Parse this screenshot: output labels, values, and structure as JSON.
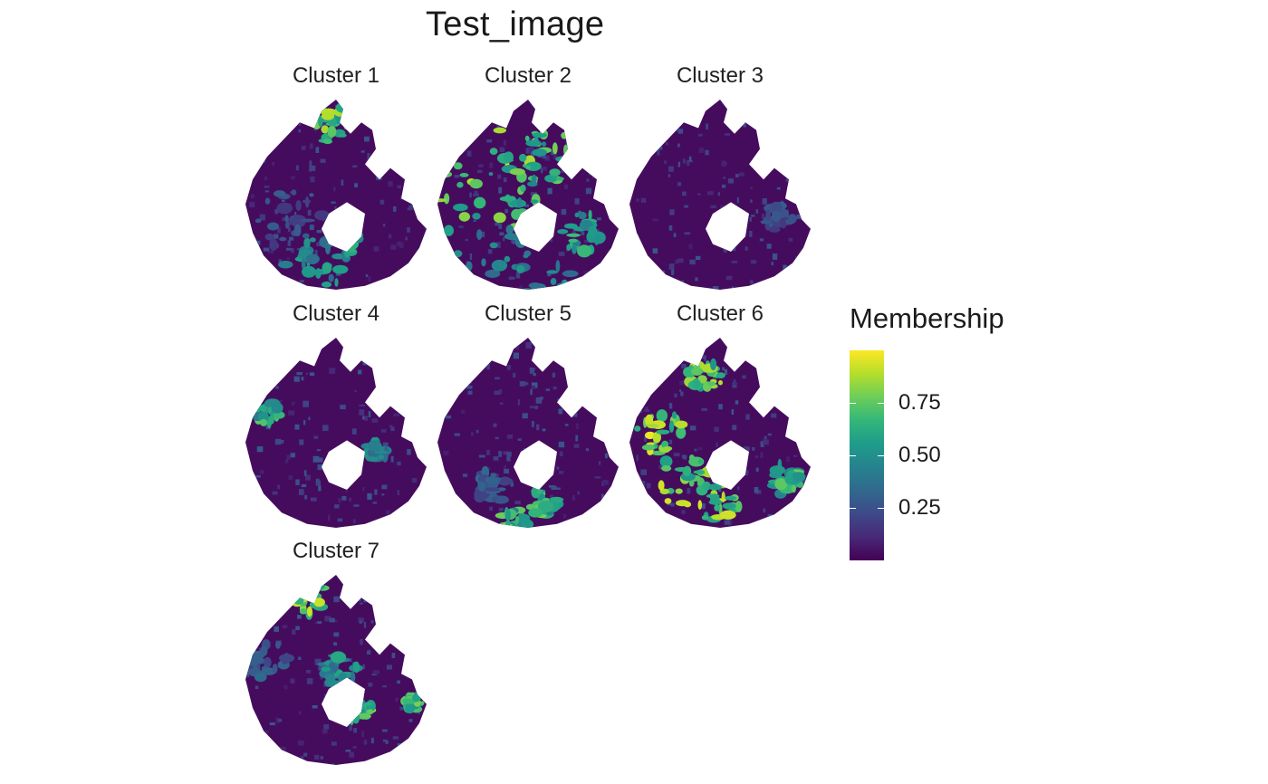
{
  "chart_data": {
    "type": "heatmap",
    "title": "Test_image",
    "panels": [
      {
        "label": "Cluster 1",
        "hotspots": [
          [
            0.47,
            0.12,
            0.12,
            0.9
          ],
          [
            0.38,
            0.9,
            0.22,
            0.6
          ],
          [
            0.56,
            0.73,
            0.1,
            0.75
          ],
          [
            0.25,
            0.62,
            0.2,
            0.3
          ]
        ]
      },
      {
        "label": "Cluster 2",
        "hotspots": [
          [
            0.38,
            0.35,
            0.38,
            0.95
          ],
          [
            0.28,
            0.6,
            0.3,
            0.85
          ],
          [
            0.55,
            0.3,
            0.2,
            0.8
          ],
          [
            0.45,
            0.88,
            0.3,
            0.6
          ],
          [
            0.8,
            0.7,
            0.12,
            0.7
          ]
        ]
      },
      {
        "label": "Cluster 3",
        "hotspots": [
          [
            0.82,
            0.62,
            0.08,
            0.3
          ]
        ]
      },
      {
        "label": "Cluster 4",
        "hotspots": [
          [
            0.12,
            0.4,
            0.07,
            0.75
          ],
          [
            0.72,
            0.6,
            0.06,
            0.55
          ]
        ]
      },
      {
        "label": "Cluster 5",
        "hotspots": [
          [
            0.6,
            0.87,
            0.09,
            0.8
          ],
          [
            0.42,
            0.96,
            0.08,
            0.8
          ],
          [
            0.3,
            0.78,
            0.1,
            0.35
          ]
        ]
      },
      {
        "label": "Cluster 6",
        "hotspots": [
          [
            0.18,
            0.5,
            0.14,
            1.0
          ],
          [
            0.3,
            0.75,
            0.16,
            0.95
          ],
          [
            0.42,
            0.2,
            0.1,
            0.9
          ],
          [
            0.5,
            0.88,
            0.12,
            0.95
          ],
          [
            0.85,
            0.75,
            0.1,
            0.8
          ],
          [
            0.78,
            0.12,
            0.07,
            0.9
          ]
        ]
      },
      {
        "label": "Cluster 7",
        "hotspots": [
          [
            0.35,
            0.12,
            0.1,
            0.95
          ],
          [
            0.62,
            0.7,
            0.08,
            0.85
          ],
          [
            0.93,
            0.67,
            0.05,
            0.8
          ],
          [
            0.52,
            0.5,
            0.1,
            0.6
          ],
          [
            0.12,
            0.45,
            0.12,
            0.35
          ]
        ]
      }
    ],
    "legend": {
      "title": "Membership",
      "ticks": [
        0.25,
        0.5,
        0.75
      ],
      "tick_labels": [
        "0.25",
        "0.50",
        "0.75"
      ],
      "range": [
        0.0,
        1.0
      ],
      "placement": "right",
      "palette": "viridis"
    },
    "grid": false
  }
}
